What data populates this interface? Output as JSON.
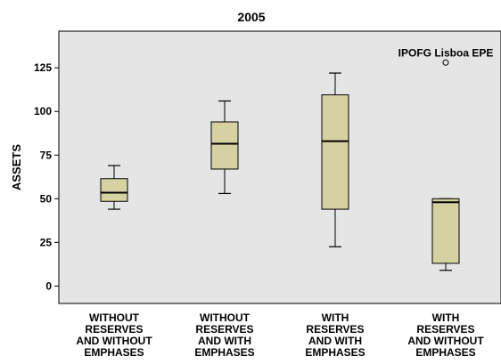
{
  "chart_data": {
    "type": "boxplot",
    "title": "2005",
    "ylabel": "ASSETS",
    "xlabel": "",
    "ylim": [
      -10,
      146
    ],
    "yticks": [
      0,
      25,
      50,
      75,
      100,
      125
    ],
    "grid": false,
    "colors": {
      "plot_background": "#e5e5e5",
      "box_fill": "#d6d1a1",
      "stroke": "#000000"
    },
    "categories": [
      [
        "WITHOUT",
        "RESERVES",
        "AND WITHOUT",
        "EMPHASES"
      ],
      [
        "WITHOUT",
        "RESERVES",
        "AND WITH",
        "EMPHASES"
      ],
      [
        "WITH",
        "RESERVES",
        "AND WITH",
        "EMPHASES"
      ],
      [
        "WITH",
        "RESERVES",
        "AND WITHOUT",
        "EMPHASES"
      ]
    ],
    "boxes": [
      {
        "whisker_low": 44,
        "q1": 48.5,
        "median": 53.5,
        "q3": 61.5,
        "whisker_high": 69,
        "outliers": []
      },
      {
        "whisker_low": 53,
        "q1": 67,
        "median": 81.5,
        "q3": 94,
        "whisker_high": 106,
        "outliers": []
      },
      {
        "whisker_low": 22.5,
        "q1": 44,
        "median": 83,
        "q3": 109.5,
        "whisker_high": 122,
        "outliers": []
      },
      {
        "whisker_low": 9,
        "q1": 13,
        "median": 48,
        "q3": 50,
        "whisker_high": 50,
        "outliers": [
          {
            "value": 128,
            "label": "IPOFG Lisboa EPE"
          }
        ]
      }
    ]
  }
}
